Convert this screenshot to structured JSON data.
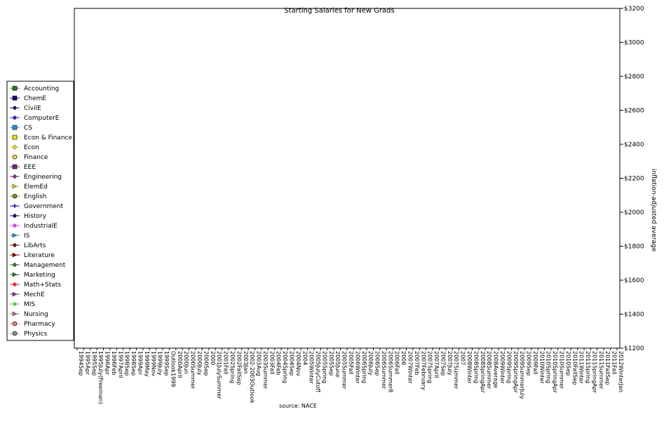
{
  "chart_data": {
    "type": "scatter",
    "title": "Starting Salaries for New Grads",
    "ylabel": "inflation-adjusted average",
    "source": "source: NACE",
    "ylim": [
      1200,
      3200
    ],
    "yticks": [
      "$1200",
      "$1400",
      "$1600",
      "$1800",
      "$2000",
      "$2200",
      "$2400",
      "$2600",
      "$2800",
      "$3000",
      "$3200"
    ],
    "xticks": [
      "1994Sep",
      "1995Apr",
      "1995Sep",
      "1995July(Freeman)",
      "1996Apr",
      "1996Feb",
      "1997April",
      "1998Sep",
      "1998Sep",
      "1999Apr",
      "1999May",
      "1999Nov",
      "1999July",
      "1999Sep",
      "Outlook1999",
      "2000April",
      "2000Jun",
      "2000Summer",
      "2000July",
      "2000Sep",
      "2000",
      "2001JulySummer",
      "2001Fall",
      "2002Spring",
      "2002FallSep",
      "2003Jan",
      "2002-2003Outlook",
      "2003Aug",
      "2003Summer",
      "2003Fall",
      "2004Feb",
      "2004Spring",
      "2004Sep",
      "2004Nov",
      "2004",
      "2005Winter",
      "2005JulyCutoff",
      "2005Spring",
      "2005Sep",
      "2005June",
      "2005Summer",
      "2005Fall",
      "2006Winter",
      "2006Spring",
      "2006July",
      "2006Sep",
      "2006Summer",
      "2006Summer8",
      "2006Fall",
      "2006",
      "2007Winter",
      "2007Feb",
      "2007February",
      "2007Spring",
      "2007April",
      "2007Sep",
      "2007July",
      "2007Summer",
      "2007",
      "2008Winter",
      "2008Spring",
      "2008SpringApr",
      "2008Summer",
      "2008Average",
      "2009Winter",
      "2009Spring",
      "2009SpringApr",
      "2009SummerJuly",
      "2009Sep",
      "2009Fall",
      "2010Winter",
      "2010Spring",
      "2010SpringApr",
      "2010Summer",
      "2010Sep",
      "2010FallSep",
      "2011Winter",
      "2011Spring",
      "2011SpringApr",
      "2011Summer",
      "2011FallSep",
      "2011Fall",
      "2012WinterJan"
    ],
    "legend_position": "left",
    "series": [
      {
        "name": "Accounting",
        "color": "#2a7a2a",
        "marker": "square"
      },
      {
        "name": "ChemE",
        "color": "#101080",
        "marker": "square"
      },
      {
        "name": "CivilE",
        "color": "#101080",
        "marker": "diamond"
      },
      {
        "name": "ComputerE",
        "color": "#2020a0",
        "marker": "asterisk"
      },
      {
        "name": "CS",
        "color": "#2f8fd8",
        "marker": "square"
      },
      {
        "name": "Econ & Finance",
        "color": "#f0e020",
        "marker": "square"
      },
      {
        "name": "Econ",
        "color": "#f0e020",
        "marker": "diamond"
      },
      {
        "name": "Finance",
        "color": "#e8d85a",
        "marker": "circle"
      },
      {
        "name": "EEE",
        "color": "#7a2a7a",
        "marker": "square"
      },
      {
        "name": "Engineering",
        "color": "#8a2a8a",
        "marker": "diamond"
      },
      {
        "name": "ElemEd",
        "color": "#d8d040",
        "marker": "triangle"
      },
      {
        "name": "English",
        "color": "#8a8a20",
        "marker": "circle"
      },
      {
        "name": "Government",
        "color": "#1010a0",
        "marker": "plus"
      },
      {
        "name": "History",
        "color": "#101070",
        "marker": "diamond"
      },
      {
        "name": "IndustrialE",
        "color": "#d040d0",
        "marker": "asterisk"
      },
      {
        "name": "IS",
        "color": "#2f8fd8",
        "marker": "triangle"
      },
      {
        "name": "LibArts",
        "color": "#7a1010",
        "marker": "diamond"
      },
      {
        "name": "Literature",
        "color": "#8a1010",
        "marker": "triangle"
      },
      {
        "name": "Management",
        "color": "#2a7a2a",
        "marker": "diamond"
      },
      {
        "name": "Marketing",
        "color": "#2a7a2a",
        "marker": "triangle"
      },
      {
        "name": "Math+Stats",
        "color": "#e02020",
        "marker": "asterisk"
      },
      {
        "name": "MechE",
        "color": "#a030a0",
        "marker": "triangle"
      },
      {
        "name": "MIS",
        "color": "#40d040",
        "marker": "asterisk"
      },
      {
        "name": "Nursing",
        "color": "#d07070",
        "marker": "triangle"
      },
      {
        "name": "Pharmacy",
        "color": "#e08080",
        "marker": "circle"
      },
      {
        "name": "Physics",
        "color": "#909090",
        "marker": "circle"
      }
    ]
  }
}
